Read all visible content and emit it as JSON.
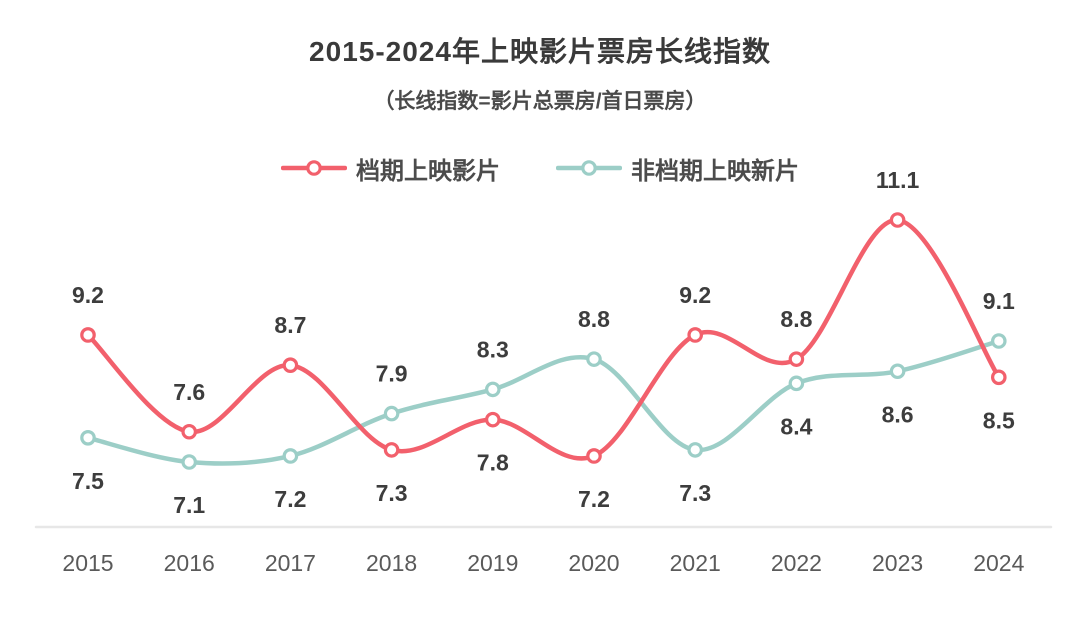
{
  "header": {
    "title": "2015-2024年上映影片票房长线指数",
    "subtitle": "（长线指数=影片总票房/首日票房）"
  },
  "colors": {
    "scheduled_series": "#F2606C",
    "non_scheduled_series": "#9CCEC7",
    "axis_line": "#E7E7E7",
    "title_text": "#3A3A3A",
    "label_text": "#3D3D3D",
    "tick_text": "#5A5A5A",
    "background": "#FFFFFF"
  },
  "chart_data": {
    "type": "line",
    "title": "2015-2024年上映影片票房长线指数",
    "subtitle": "（长线指数=影片总票房/首日票房）",
    "x": [
      2015,
      2016,
      2017,
      2018,
      2019,
      2020,
      2021,
      2022,
      2023,
      2024
    ],
    "series": [
      {
        "name": "档期上映影片",
        "color": "#F2606C",
        "values": [
          9.2,
          7.6,
          8.7,
          7.3,
          7.8,
          7.2,
          9.2,
          8.8,
          11.1,
          8.5
        ]
      },
      {
        "name": "非档期上映新片",
        "color": "#9CCEC7",
        "values": [
          7.5,
          7.1,
          7.2,
          7.9,
          8.3,
          8.8,
          7.3,
          8.4,
          8.6,
          9.1
        ]
      }
    ],
    "xlabel": "",
    "ylabel": "",
    "ylim": [
      7.1,
      11.1
    ],
    "grid": false,
    "y_axis_visible": false,
    "legend_position": "top",
    "smooth": true,
    "data_labels": true,
    "marker": "open-circle"
  }
}
